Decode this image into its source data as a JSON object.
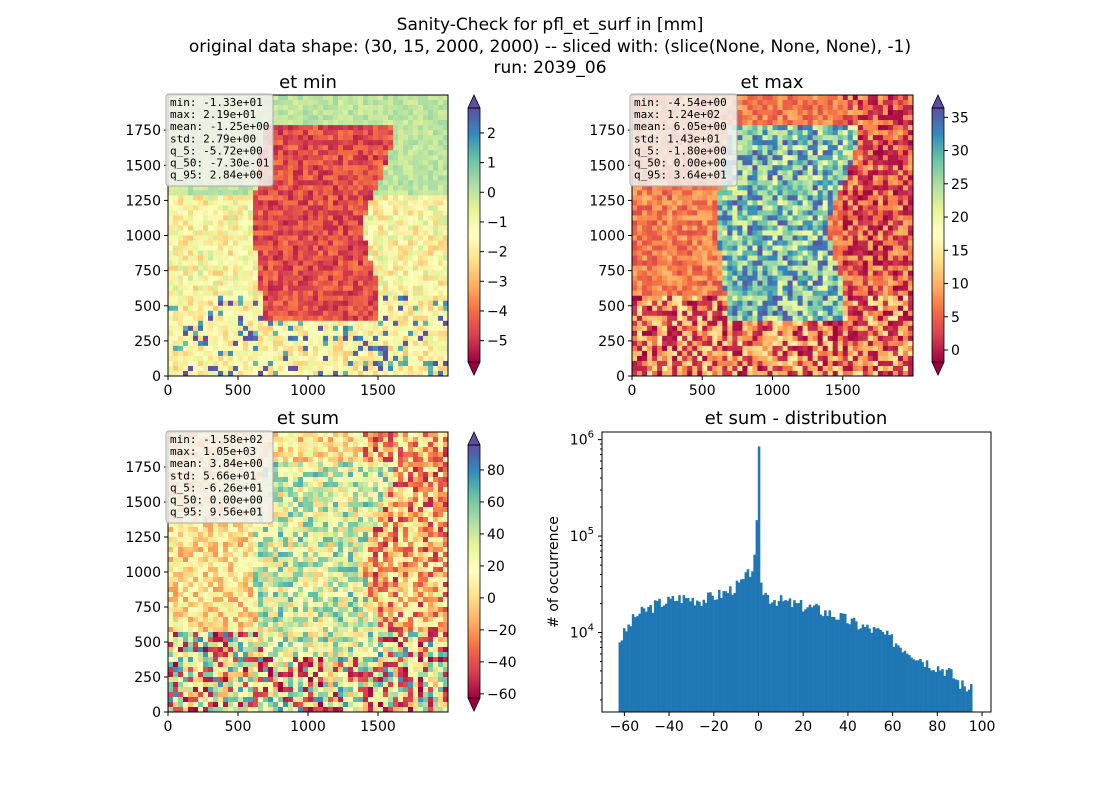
{
  "figure": {
    "title_lines": [
      "Sanity-Check for pfl_et_surf in [mm]",
      "original data shape: (30, 15, 2000, 2000) -- sliced with: (slice(None, None, None), -1)",
      "run: 2039_06"
    ]
  },
  "chart_data": [
    {
      "type": "heatmap",
      "title": "et min",
      "xlim": [
        0,
        2000
      ],
      "ylim": [
        0,
        2000
      ],
      "xticks": [
        "0",
        "500",
        "1000",
        "1500"
      ],
      "yticks": [
        "0",
        "250",
        "500",
        "750",
        "1000",
        "1250",
        "1500",
        "1750"
      ],
      "colormap": "Spectral",
      "colorbar": {
        "range": [
          -5.72,
          2.84
        ],
        "ticks": [
          "−5",
          "−4",
          "−3",
          "−2",
          "−1",
          "0",
          "1",
          "2"
        ],
        "extend": "both"
      },
      "stats": [
        "min: -1.33e+01",
        "max: 2.19e+01",
        "mean: -1.25e+00",
        "std: 2.79e+00",
        "q_5: -5.72e+00",
        "q_50: -7.30e-01",
        "q_95: 2.84e+00"
      ]
    },
    {
      "type": "heatmap",
      "title": "et max",
      "xlim": [
        0,
        2000
      ],
      "ylim": [
        0,
        2000
      ],
      "xticks": [
        "0",
        "500",
        "1000",
        "1500"
      ],
      "yticks": [
        "0",
        "250",
        "500",
        "750",
        "1000",
        "1250",
        "1500",
        "1750"
      ],
      "colormap": "Spectral",
      "colorbar": {
        "range": [
          -1.8,
          36.4
        ],
        "ticks": [
          "0",
          "5",
          "10",
          "15",
          "20",
          "25",
          "30",
          "35"
        ],
        "extend": "both"
      },
      "stats": [
        "min: -4.54e+00",
        "max: 1.24e+02",
        "mean: 6.05e+00",
        "std: 1.43e+01",
        "q_5: -1.80e+00",
        "q_50: 0.00e+00",
        "q_95: 3.64e+01"
      ]
    },
    {
      "type": "heatmap",
      "title": "et sum",
      "xlim": [
        0,
        2000
      ],
      "ylim": [
        0,
        2000
      ],
      "xticks": [
        "0",
        "500",
        "1000",
        "1500"
      ],
      "yticks": [
        "0",
        "250",
        "500",
        "750",
        "1000",
        "1250",
        "1500",
        "1750"
      ],
      "colormap": "Spectral",
      "colorbar": {
        "range": [
          -62.6,
          95.6
        ],
        "ticks": [
          "−60",
          "−40",
          "−20",
          "0",
          "20",
          "40",
          "60",
          "80"
        ],
        "extend": "both"
      },
      "stats": [
        "min: -1.58e+02",
        "max: 1.05e+03",
        "mean: 3.84e+00",
        "std: 5.66e+01",
        "q_5: -6.26e+01",
        "q_50: 0.00e+00",
        "q_95: 9.56e+01"
      ]
    },
    {
      "type": "bar",
      "title": "et sum - distribution",
      "xlabel": "",
      "ylabel": "# of occurrence",
      "yscale": "log",
      "xlim": [
        -70,
        104
      ],
      "ylim": [
        1500,
        1200000
      ],
      "xticks": [
        "−60",
        "−40",
        "−20",
        "0",
        "20",
        "40",
        "60",
        "80",
        "100"
      ],
      "yticks": [
        "10^4",
        "10^5",
        "10^6"
      ],
      "color": "#1f77b4",
      "bin_range": [
        -62.6,
        95.6
      ],
      "counts_profile": [
        [
          -62.6,
          8000
        ],
        [
          -55,
          15000
        ],
        [
          -45,
          20000
        ],
        [
          -35,
          23000
        ],
        [
          -25,
          22000
        ],
        [
          -15,
          26000
        ],
        [
          -8,
          32000
        ],
        [
          -3,
          45000
        ],
        [
          -1.5,
          60000
        ],
        [
          -0.5,
          180000
        ],
        [
          0,
          850000
        ],
        [
          0.6,
          30000
        ],
        [
          5,
          23000
        ],
        [
          15,
          20000
        ],
        [
          25,
          18000
        ],
        [
          35,
          15000
        ],
        [
          45,
          12000
        ],
        [
          55,
          10000
        ],
        [
          65,
          7000
        ],
        [
          75,
          5000
        ],
        [
          85,
          4000
        ],
        [
          90,
          3000
        ],
        [
          95.6,
          2500
        ]
      ]
    }
  ]
}
